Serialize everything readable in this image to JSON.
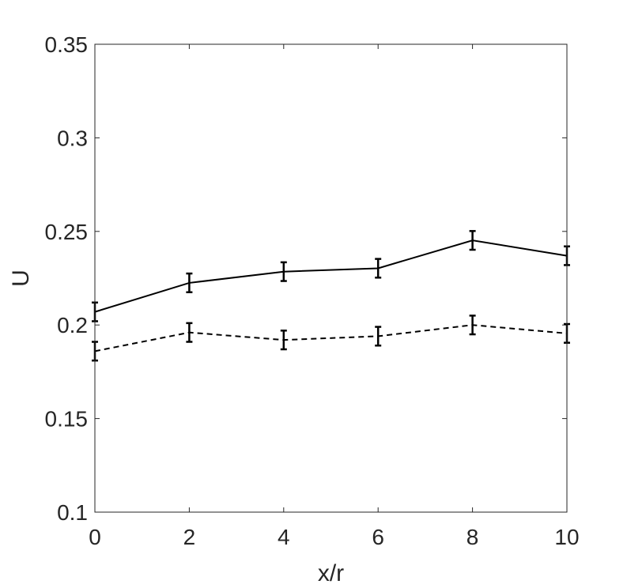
{
  "chart_data": {
    "type": "line",
    "xlabel": "x/r",
    "ylabel": "U",
    "xlim": [
      0,
      10
    ],
    "ylim": [
      0.1,
      0.35
    ],
    "x": [
      0,
      2,
      4,
      6,
      8,
      10
    ],
    "xticks": [
      "0",
      "2",
      "4",
      "6",
      "8",
      "10"
    ],
    "yticks": [
      "0.1",
      "0.15",
      "0.2",
      "0.25",
      "0.3",
      "0.35"
    ],
    "grid": false,
    "legend": "none",
    "series": [
      {
        "style": "solid",
        "color": "#000000",
        "values": [
          0.207,
          0.2225,
          0.2285,
          0.2303,
          0.2452,
          0.237
        ],
        "error": [
          0.005,
          0.005,
          0.005,
          0.005,
          0.005,
          0.005
        ]
      },
      {
        "style": "dashed",
        "color": "#000000",
        "values": [
          0.186,
          0.196,
          0.192,
          0.194,
          0.2,
          0.1955
        ],
        "error": [
          0.005,
          0.005,
          0.005,
          0.005,
          0.005,
          0.005
        ]
      }
    ]
  }
}
